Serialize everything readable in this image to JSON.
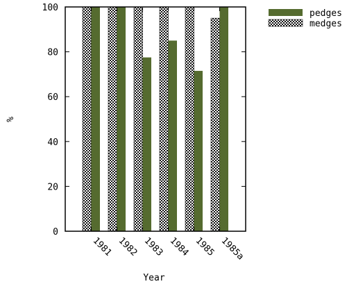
{
  "chart_data": {
    "type": "bar",
    "categories": [
      "1981",
      "1982",
      "1983",
      "1984",
      "1985",
      "1985a"
    ],
    "series": [
      {
        "name": "medges",
        "values": [
          100,
          100,
          100,
          100,
          100,
          95
        ],
        "color": "#111111",
        "fill": "checker"
      },
      {
        "name": "pedges",
        "values": [
          100,
          100,
          77.5,
          85,
          71.5,
          100
        ],
        "color": "#556b2f",
        "fill": "solid"
      }
    ],
    "legend_order": [
      "pedges",
      "medges"
    ],
    "legend_placement": "top-right outside",
    "xlabel": "Year",
    "ylabel": "%",
    "ylim": [
      0,
      100
    ],
    "yticks": [
      0,
      20,
      40,
      60,
      80,
      100
    ],
    "grid": false
  }
}
